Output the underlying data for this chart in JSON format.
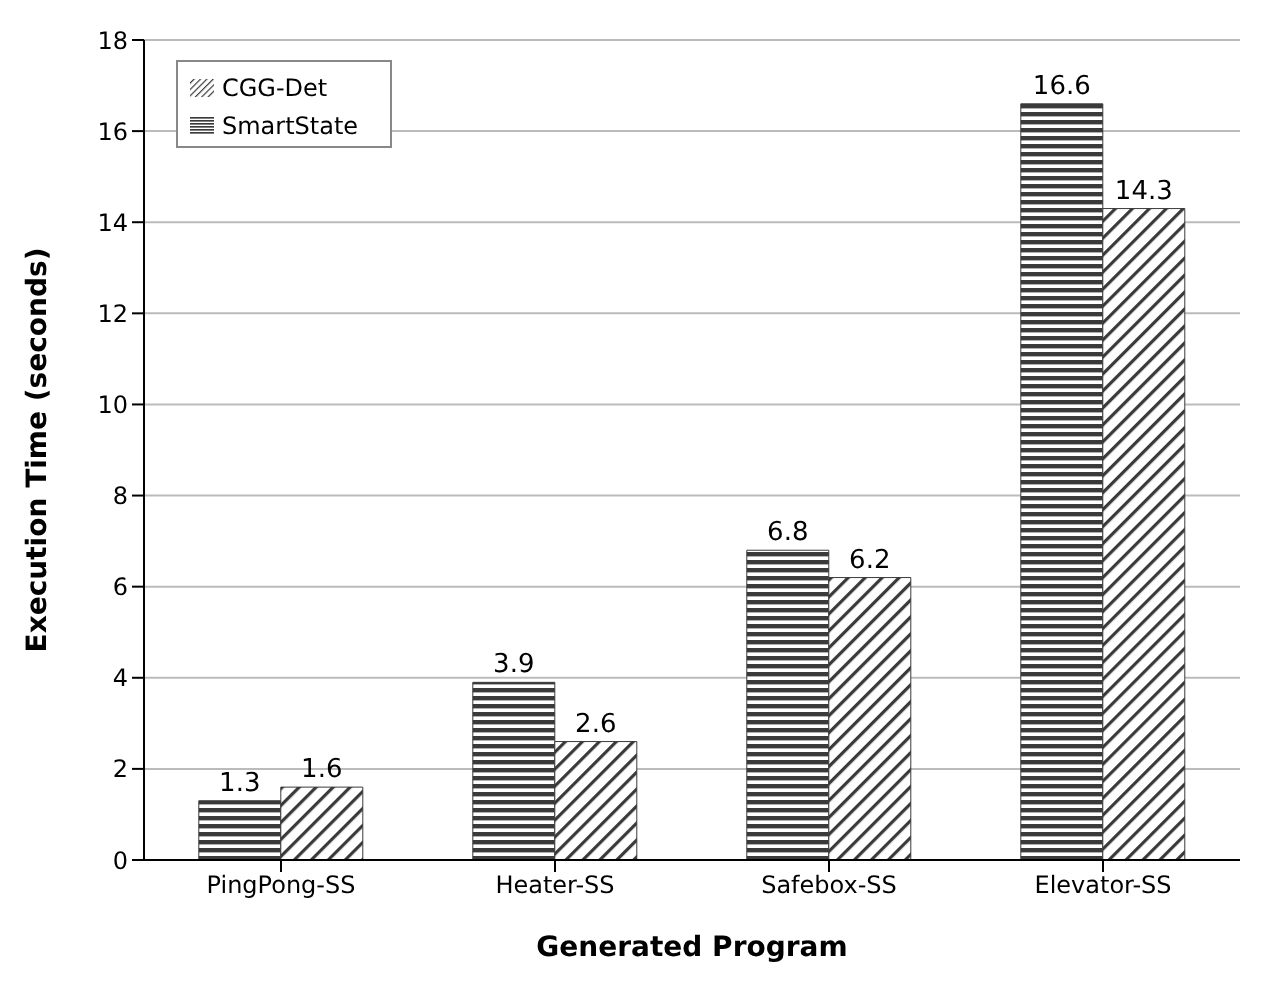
{
  "chart_data": {
    "type": "bar",
    "xlabel": "Generated Program",
    "ylabel": "Execution Time (seconds)",
    "categories": [
      "PingPong-SS",
      "Heater-SS",
      "Safebox-SS",
      "Elevator-SS"
    ],
    "series": [
      {
        "name": "SmartState",
        "color": "#3a3a3a",
        "values": [
          1.3,
          3.9,
          6.8,
          16.6
        ]
      },
      {
        "name": "CGG-Det",
        "color": "#3a3a3a",
        "values": [
          1.6,
          2.6,
          6.2,
          14.3
        ]
      }
    ],
    "ylim": [
      0,
      18
    ],
    "yticks": [
      0,
      2,
      4,
      6,
      8,
      10,
      12,
      14,
      16,
      18
    ],
    "grid": "y",
    "legend": "top left",
    "data_labels": true
  }
}
